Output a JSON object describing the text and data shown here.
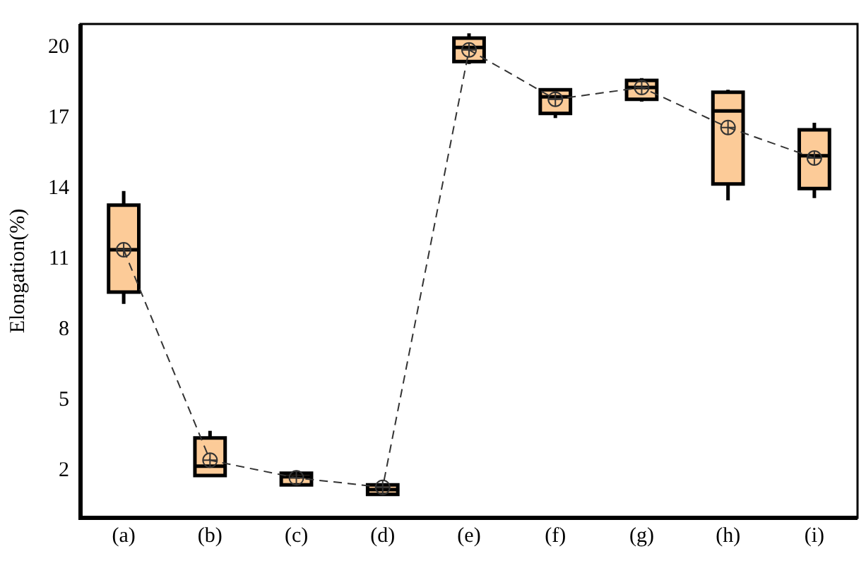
{
  "chart_data": {
    "type": "box",
    "ylabel": "Elongation(%)",
    "categories": [
      "(a)",
      "(b)",
      "(c)",
      "(d)",
      "(e)",
      "(f)",
      "(g)",
      "(h)",
      "(i)"
    ],
    "ylim": [
      0,
      21
    ],
    "yticks": [
      2,
      5,
      8,
      11,
      14,
      17,
      20
    ],
    "grid": false,
    "legend": false,
    "series": [
      {
        "color": "#fccb98",
        "boxes": [
          {
            "low": 9.1,
            "q1": 9.6,
            "median": 11.4,
            "q3": 13.3,
            "high": 13.9
          },
          {
            "low": 1.8,
            "q1": 1.8,
            "median": 2.2,
            "q3": 3.4,
            "high": 3.7
          },
          {
            "low": 1.4,
            "q1": 1.4,
            "median": 1.75,
            "q3": 1.9,
            "high": 1.9
          },
          {
            "low": 1.0,
            "q1": 1.0,
            "median": 1.2,
            "q3": 1.4,
            "high": 1.4
          },
          {
            "low": 19.3,
            "q1": 19.4,
            "median": 20.0,
            "q3": 20.4,
            "high": 20.6
          },
          {
            "low": 17.0,
            "q1": 17.2,
            "median": 17.9,
            "q3": 18.2,
            "high": 18.2
          },
          {
            "low": 17.7,
            "q1": 17.8,
            "median": 18.3,
            "q3": 18.6,
            "high": 18.7
          },
          {
            "low": 13.5,
            "q1": 14.2,
            "median": 17.3,
            "q3": 18.1,
            "high": 18.2
          },
          {
            "low": 13.6,
            "q1": 14.0,
            "median": 15.4,
            "q3": 16.5,
            "high": 16.8
          }
        ]
      },
      {
        "type": "line",
        "color": "#333333",
        "line_style": "dashed",
        "marker": "circle",
        "values": [
          11.4,
          2.45,
          1.7,
          1.3,
          19.9,
          17.8,
          18.3,
          16.6,
          15.3
        ]
      }
    ]
  }
}
